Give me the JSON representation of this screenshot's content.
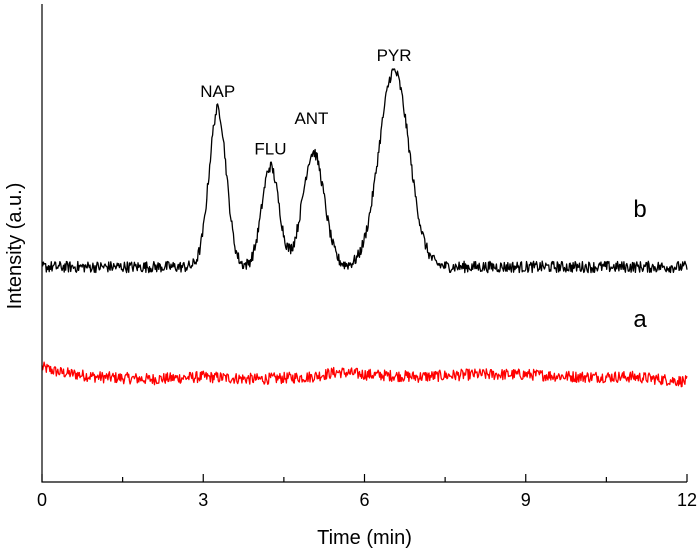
{
  "chart_data": {
    "type": "line",
    "xlabel": "Time (min)",
    "ylabel": "Intensity (a.u.)",
    "xlim": [
      0,
      12
    ],
    "xticks": [
      "0",
      "3",
      "6",
      "9",
      "12"
    ],
    "yticks_labeled": false,
    "grid": false,
    "legend": "none",
    "series": [
      {
        "name": "a",
        "color": "#ff0000",
        "baseline": 0.22,
        "noise": 0.012,
        "x": [
          0,
          0.3,
          1,
          2,
          3,
          4,
          5,
          5.5,
          6,
          7,
          8,
          9,
          10,
          11,
          12
        ],
        "y": [
          0.24,
          0.23,
          0.22,
          0.215,
          0.22,
          0.215,
          0.22,
          0.23,
          0.225,
          0.22,
          0.225,
          0.225,
          0.22,
          0.22,
          0.21
        ]
      },
      {
        "name": "b",
        "color": "#000000",
        "baseline": 0.45,
        "noise": 0.012,
        "peaks": [
          {
            "label": "NAP",
            "time": 3.27,
            "height": 0.78,
            "width": 0.16
          },
          {
            "label": "FLU",
            "time": 4.25,
            "height": 0.66,
            "width": 0.16
          },
          {
            "label": "ANT",
            "time": 5.05,
            "height": 0.69,
            "width": 0.2
          },
          {
            "label": "PYR",
            "time": 6.55,
            "height": 0.86,
            "width": 0.28
          }
        ]
      }
    ]
  }
}
